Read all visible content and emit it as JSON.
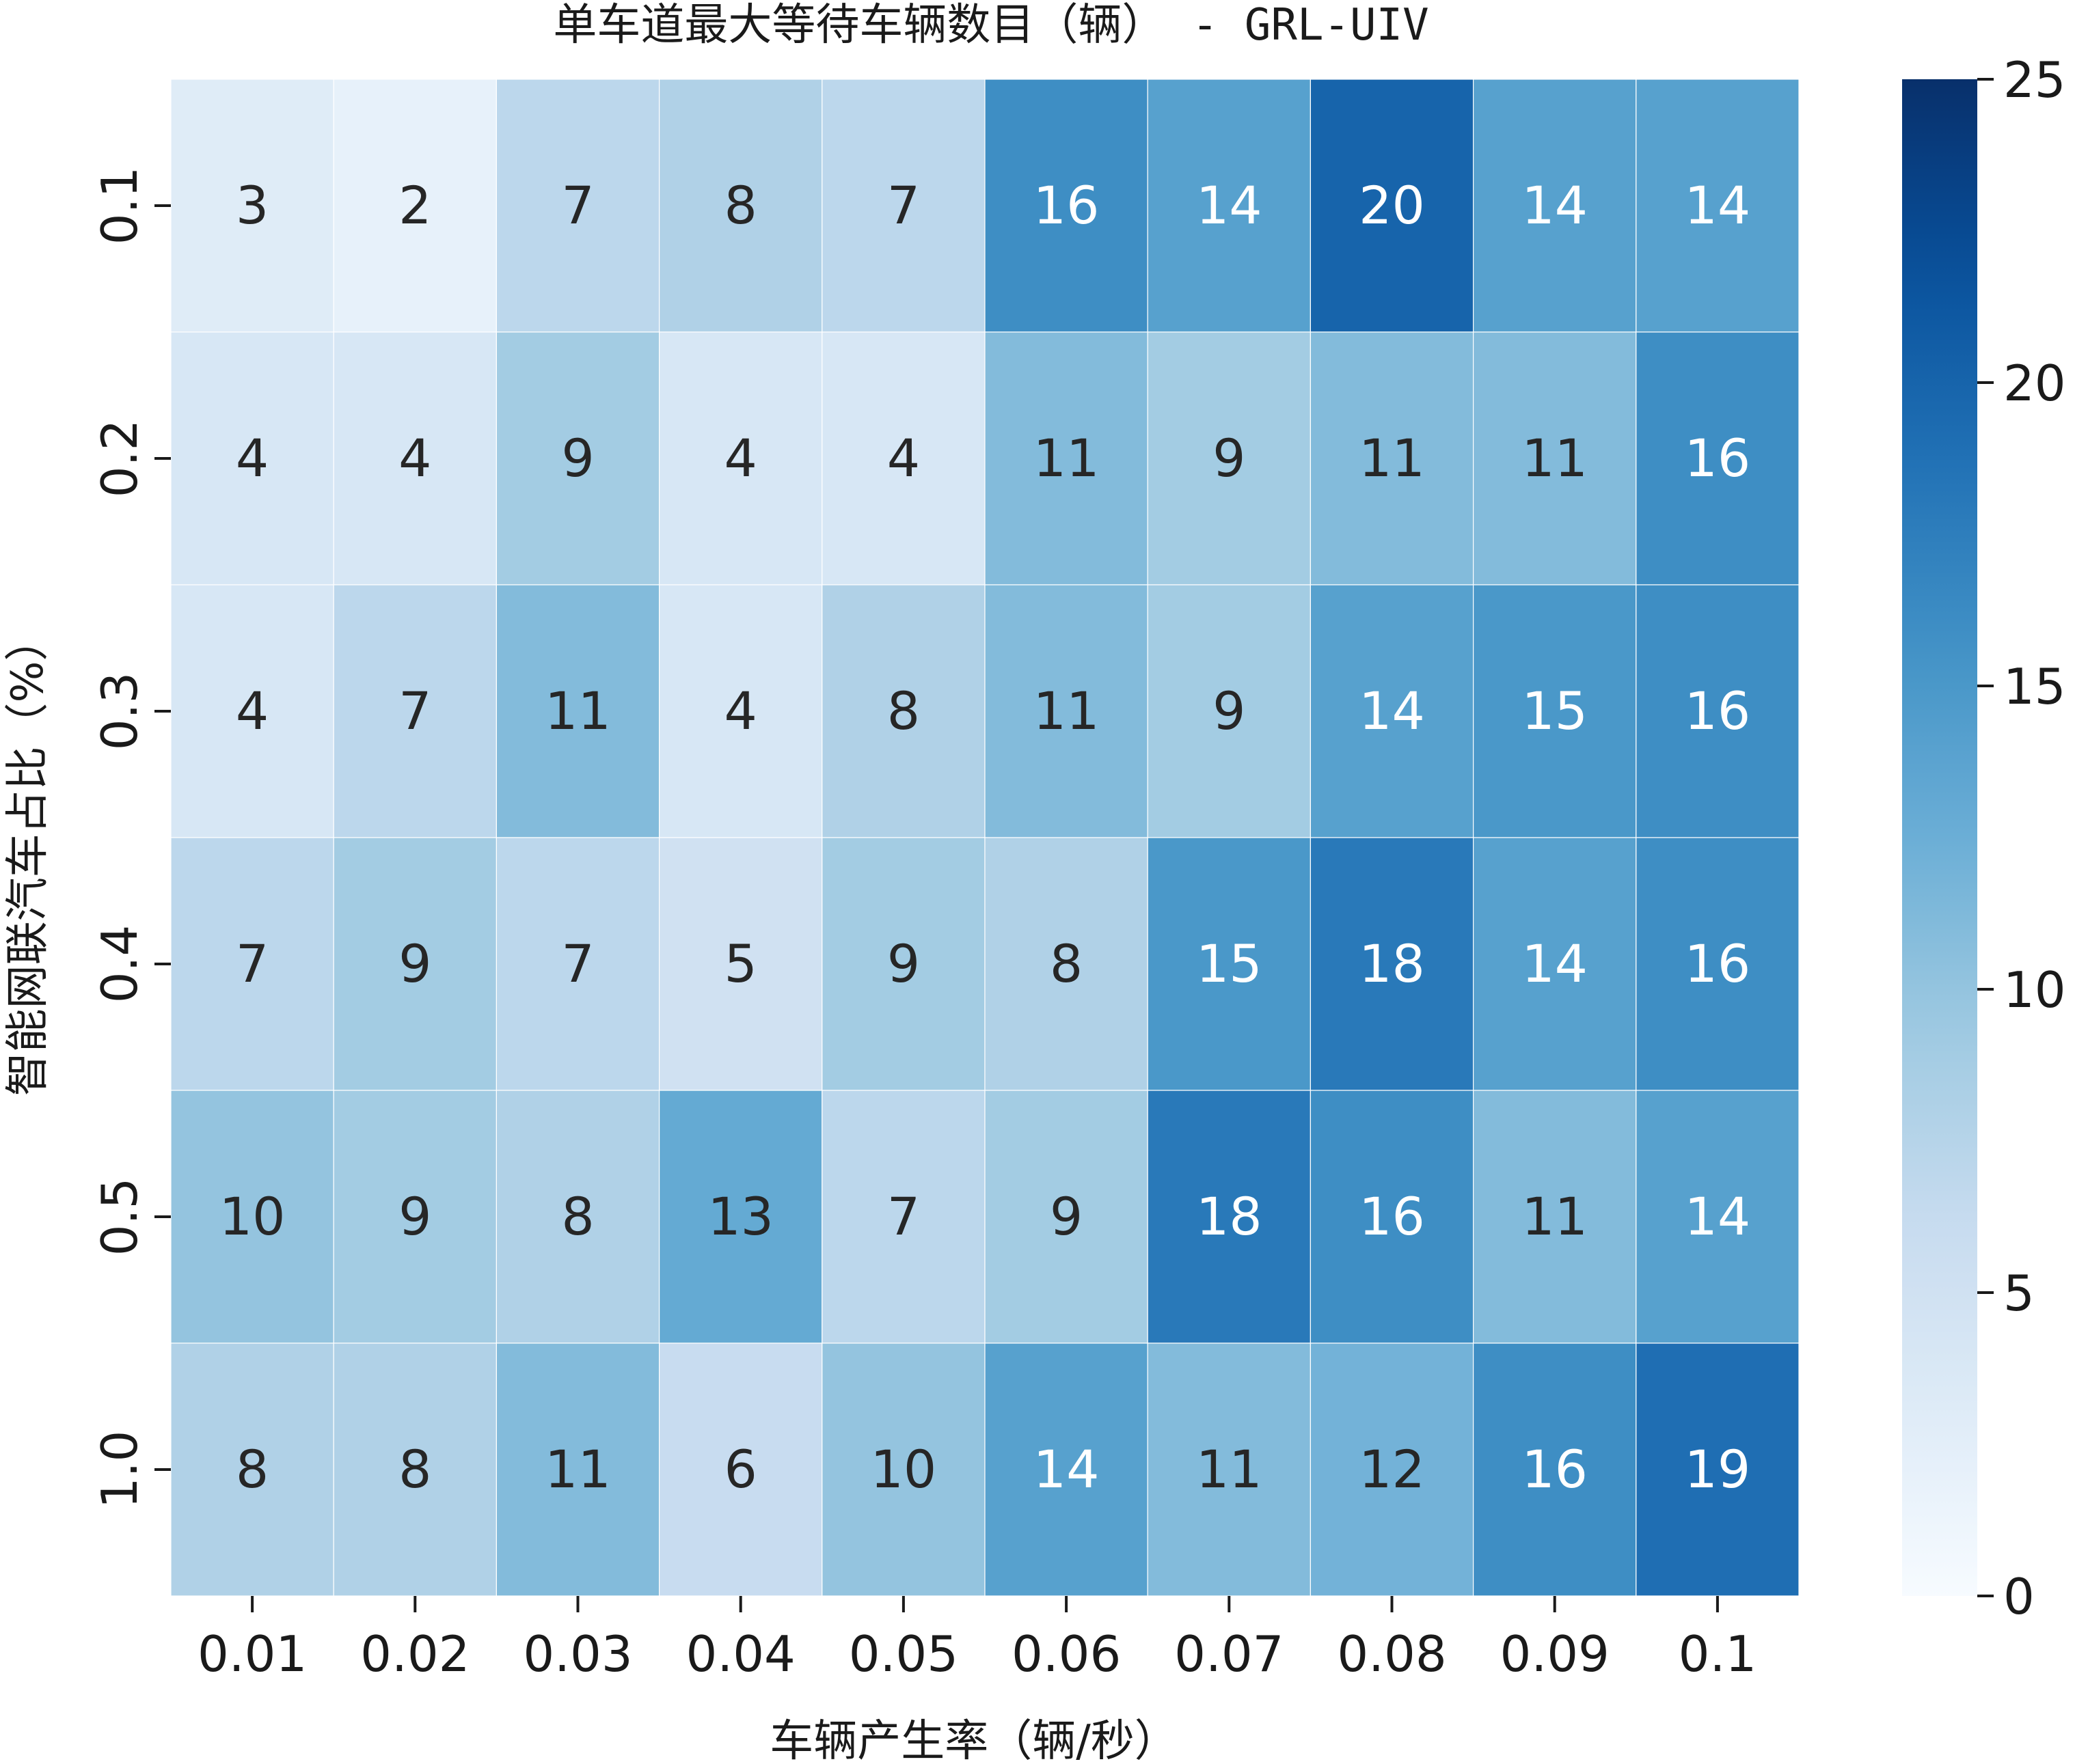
{
  "chart_data": {
    "type": "heatmap",
    "title": "单车道最大等待车辆数目（辆） - GRL-UIV",
    "xlabel": "车辆产生率（辆/秒）",
    "ylabel": "智能网联汽车占比（%）",
    "x_categories": [
      "0.01",
      "0.02",
      "0.03",
      "0.04",
      "0.05",
      "0.06",
      "0.07",
      "0.08",
      "0.09",
      "0.1"
    ],
    "y_categories": [
      "0.1",
      "0.2",
      "0.3",
      "0.4",
      "0.5",
      "1.0"
    ],
    "values": [
      [
        3,
        2,
        7,
        8,
        7,
        16,
        14,
        20,
        14,
        14
      ],
      [
        4,
        4,
        9,
        4,
        4,
        11,
        9,
        11,
        11,
        16
      ],
      [
        4,
        7,
        11,
        4,
        8,
        11,
        9,
        14,
        15,
        16
      ],
      [
        7,
        9,
        7,
        5,
        9,
        8,
        15,
        18,
        14,
        16
      ],
      [
        10,
        9,
        8,
        13,
        7,
        9,
        18,
        16,
        11,
        14
      ],
      [
        8,
        8,
        11,
        6,
        10,
        14,
        11,
        12,
        16,
        19
      ]
    ],
    "colorbar": {
      "colormap": "Blues",
      "range": [
        0,
        25
      ],
      "ticks": [
        0,
        5,
        10,
        15,
        20,
        25
      ]
    },
    "colors": {
      "low": "#f7fbff",
      "high": "#08306b",
      "text_dark": "#262626",
      "text_light": "#ffffff"
    },
    "annotations": true,
    "grid": false
  }
}
